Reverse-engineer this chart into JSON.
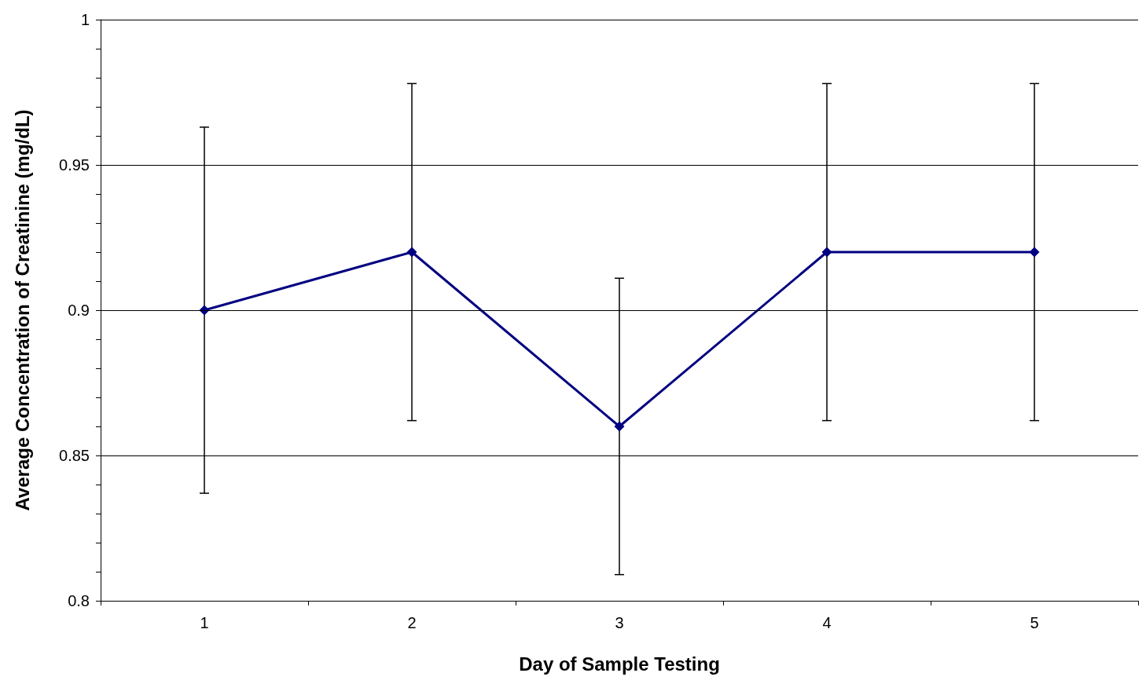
{
  "chart_data": {
    "type": "line",
    "xlabel": "Day of Sample Testing",
    "ylabel": "Average Concentration of Creatinine (mg/dL)",
    "categories": [
      "1",
      "2",
      "3",
      "4",
      "5"
    ],
    "series": [
      {
        "color": "#000080",
        "values": [
          0.9,
          0.92,
          0.86,
          0.92,
          0.92
        ],
        "errors": [
          0.063,
          0.058,
          0.051,
          0.058,
          0.058
        ]
      }
    ],
    "ylim": [
      0.8,
      1
    ],
    "yticks": [
      0.8,
      {
        "value": 0.81,
        "label": null
      },
      {
        "value": 0.82,
        "label": null
      },
      {
        "value": 0.83,
        "label": null
      },
      {
        "value": 0.84,
        "label": null
      },
      0.85,
      {
        "value": 0.86,
        "label": null
      },
      {
        "value": 0.87,
        "label": null
      },
      {
        "value": 0.88,
        "label": null
      },
      {
        "value": 0.89,
        "label": null
      },
      0.9,
      {
        "value": 0.91,
        "label": null
      },
      {
        "value": 0.92,
        "label": null
      },
      {
        "value": 0.93,
        "label": null
      },
      {
        "value": 0.94,
        "label": null
      },
      0.95,
      {
        "value": 0.96,
        "label": null
      },
      {
        "value": 0.97,
        "label": null
      },
      {
        "value": 0.98,
        "label": null
      },
      {
        "value": 0.99,
        "label": null
      },
      1
    ],
    "grid": "y",
    "marker": "diamond",
    "line_style": "solid"
  }
}
